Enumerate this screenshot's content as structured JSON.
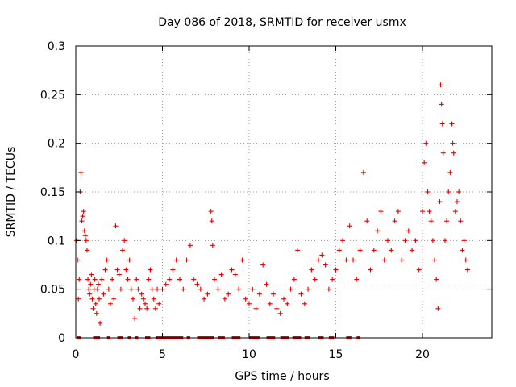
{
  "chart_data": {
    "type": "scatter",
    "title": "Day 086 of 2018, SRMTID for receiver usmx",
    "xlabel": "GPS time / hours",
    "ylabel": "SRMTID / TECUs",
    "xlim": [
      0,
      24
    ],
    "ylim": [
      0,
      0.3
    ],
    "xticks": [
      0,
      5,
      10,
      15,
      20
    ],
    "yticks": [
      0,
      0.05,
      0.1,
      0.15,
      0.2,
      0.25,
      0.3
    ],
    "xtick_labels": [
      "0",
      "5",
      "10",
      "15",
      "20"
    ],
    "ytick_labels": [
      "0",
      "0.05",
      "0.1",
      "0.15",
      "0.2",
      "0.25",
      "0.3"
    ],
    "grid": true,
    "marker": "+",
    "color": "#e00000",
    "series": [
      {
        "name": "SRMTID",
        "points": [
          [
            0.05,
            0.1
          ],
          [
            0.1,
            0.08
          ],
          [
            0.15,
            0.04
          ],
          [
            0.2,
            0.06
          ],
          [
            0.25,
            0.15
          ],
          [
            0.3,
            0.17
          ],
          [
            0.35,
            0.12
          ],
          [
            0.4,
            0.125
          ],
          [
            0.45,
            0.13
          ],
          [
            0.5,
            0.11
          ],
          [
            0.55,
            0.105
          ],
          [
            0.6,
            0.1
          ],
          [
            0.65,
            0.09
          ],
          [
            0.7,
            0.06
          ],
          [
            0.75,
            0.05
          ],
          [
            0.8,
            0.045
          ],
          [
            0.85,
            0.055
          ],
          [
            0.9,
            0.065
          ],
          [
            0.95,
            0.04
          ],
          [
            1.0,
            0.03
          ],
          [
            1.05,
            0.05
          ],
          [
            1.1,
            0.06
          ],
          [
            1.15,
            0.035
          ],
          [
            1.2,
            0.025
          ],
          [
            1.25,
            0.05
          ],
          [
            1.3,
            0.055
          ],
          [
            1.35,
            0.04
          ],
          [
            1.4,
            0.015
          ],
          [
            1.5,
            0.06
          ],
          [
            1.6,
            0.045
          ],
          [
            1.7,
            0.07
          ],
          [
            1.8,
            0.08
          ],
          [
            1.9,
            0.05
          ],
          [
            2.0,
            0.035
          ],
          [
            2.1,
            0.06
          ],
          [
            2.2,
            0.04
          ],
          [
            2.3,
            0.115
          ],
          [
            2.4,
            0.07
          ],
          [
            2.5,
            0.065
          ],
          [
            2.6,
            0.05
          ],
          [
            2.7,
            0.09
          ],
          [
            2.8,
            0.1
          ],
          [
            2.9,
            0.07
          ],
          [
            3.0,
            0.06
          ],
          [
            3.1,
            0.08
          ],
          [
            3.2,
            0.05
          ],
          [
            3.3,
            0.04
          ],
          [
            3.4,
            0.02
          ],
          [
            3.5,
            0.06
          ],
          [
            3.6,
            0.05
          ],
          [
            3.7,
            0.03
          ],
          [
            3.8,
            0.045
          ],
          [
            3.9,
            0.04
          ],
          [
            4.0,
            0.035
          ],
          [
            4.1,
            0.03
          ],
          [
            4.2,
            0.06
          ],
          [
            4.3,
            0.07
          ],
          [
            4.4,
            0.05
          ],
          [
            4.5,
            0.04
          ],
          [
            4.6,
            0.03
          ],
          [
            4.7,
            0.05
          ],
          [
            4.8,
            0.035
          ],
          [
            5.0,
            0.05
          ],
          [
            5.2,
            0.055
          ],
          [
            5.4,
            0.06
          ],
          [
            5.6,
            0.07
          ],
          [
            5.8,
            0.08
          ],
          [
            6.0,
            0.06
          ],
          [
            6.2,
            0.05
          ],
          [
            6.4,
            0.08
          ],
          [
            6.6,
            0.095
          ],
          [
            6.8,
            0.06
          ],
          [
            7.0,
            0.055
          ],
          [
            7.2,
            0.05
          ],
          [
            7.4,
            0.04
          ],
          [
            7.6,
            0.045
          ],
          [
            7.8,
            0.13
          ],
          [
            7.85,
            0.12
          ],
          [
            7.9,
            0.095
          ],
          [
            8.0,
            0.06
          ],
          [
            8.2,
            0.05
          ],
          [
            8.4,
            0.065
          ],
          [
            8.6,
            0.04
          ],
          [
            8.8,
            0.045
          ],
          [
            9.0,
            0.07
          ],
          [
            9.2,
            0.065
          ],
          [
            9.4,
            0.05
          ],
          [
            9.6,
            0.08
          ],
          [
            9.8,
            0.04
          ],
          [
            10.0,
            0.035
          ],
          [
            10.2,
            0.05
          ],
          [
            10.4,
            0.03
          ],
          [
            10.6,
            0.045
          ],
          [
            10.8,
            0.075
          ],
          [
            11.0,
            0.055
          ],
          [
            11.2,
            0.035
          ],
          [
            11.4,
            0.045
          ],
          [
            11.6,
            0.03
          ],
          [
            11.8,
            0.025
          ],
          [
            12.0,
            0.04
          ],
          [
            12.2,
            0.035
          ],
          [
            12.4,
            0.05
          ],
          [
            12.6,
            0.06
          ],
          [
            12.8,
            0.09
          ],
          [
            13.0,
            0.045
          ],
          [
            13.2,
            0.035
          ],
          [
            13.4,
            0.05
          ],
          [
            13.6,
            0.07
          ],
          [
            13.8,
            0.06
          ],
          [
            14.0,
            0.08
          ],
          [
            14.2,
            0.085
          ],
          [
            14.4,
            0.075
          ],
          [
            14.6,
            0.05
          ],
          [
            14.8,
            0.06
          ],
          [
            15.0,
            0.07
          ],
          [
            15.2,
            0.09
          ],
          [
            15.4,
            0.1
          ],
          [
            15.6,
            0.08
          ],
          [
            15.8,
            0.115
          ],
          [
            16.0,
            0.08
          ],
          [
            16.2,
            0.06
          ],
          [
            16.4,
            0.09
          ],
          [
            16.6,
            0.17
          ],
          [
            16.8,
            0.12
          ],
          [
            17.0,
            0.07
          ],
          [
            17.2,
            0.09
          ],
          [
            17.4,
            0.11
          ],
          [
            17.6,
            0.13
          ],
          [
            17.8,
            0.08
          ],
          [
            18.0,
            0.1
          ],
          [
            18.2,
            0.09
          ],
          [
            18.4,
            0.12
          ],
          [
            18.6,
            0.13
          ],
          [
            18.8,
            0.08
          ],
          [
            19.0,
            0.1
          ],
          [
            19.2,
            0.11
          ],
          [
            19.4,
            0.09
          ],
          [
            19.6,
            0.1
          ],
          [
            19.8,
            0.07
          ],
          [
            20.0,
            0.13
          ],
          [
            20.1,
            0.18
          ],
          [
            20.2,
            0.2
          ],
          [
            20.3,
            0.15
          ],
          [
            20.4,
            0.13
          ],
          [
            20.5,
            0.12
          ],
          [
            20.6,
            0.1
          ],
          [
            20.7,
            0.08
          ],
          [
            20.8,
            0.06
          ],
          [
            20.9,
            0.03
          ],
          [
            21.0,
            0.14
          ],
          [
            21.05,
            0.26
          ],
          [
            21.1,
            0.24
          ],
          [
            21.15,
            0.22
          ],
          [
            21.2,
            0.19
          ],
          [
            21.3,
            0.1
          ],
          [
            21.4,
            0.12
          ],
          [
            21.5,
            0.15
          ],
          [
            21.6,
            0.17
          ],
          [
            21.7,
            0.22
          ],
          [
            21.75,
            0.2
          ],
          [
            21.8,
            0.19
          ],
          [
            21.9,
            0.13
          ],
          [
            22.0,
            0.14
          ],
          [
            22.1,
            0.15
          ],
          [
            22.2,
            0.12
          ],
          [
            22.3,
            0.09
          ],
          [
            22.4,
            0.1
          ],
          [
            22.5,
            0.08
          ],
          [
            22.6,
            0.07
          ]
        ]
      }
    ],
    "baseline": {
      "y": 0,
      "segments": [
        [
          0.05,
          0.3
        ],
        [
          1.0,
          1.4
        ],
        [
          1.8,
          2.0
        ],
        [
          2.4,
          2.7
        ],
        [
          3.0,
          3.2
        ],
        [
          3.4,
          3.6
        ],
        [
          4.0,
          4.3
        ],
        [
          4.6,
          6.2
        ],
        [
          6.4,
          6.6
        ],
        [
          7.0,
          8.0
        ],
        [
          8.2,
          8.6
        ],
        [
          9.0,
          9.5
        ],
        [
          10.0,
          10.6
        ],
        [
          11.0,
          11.5
        ],
        [
          11.8,
          12.3
        ],
        [
          12.5,
          13.0
        ],
        [
          13.2,
          13.5
        ],
        [
          14.0,
          14.3
        ],
        [
          14.6,
          14.9
        ],
        [
          15.6,
          15.9
        ],
        [
          16.2,
          16.4
        ]
      ]
    }
  }
}
